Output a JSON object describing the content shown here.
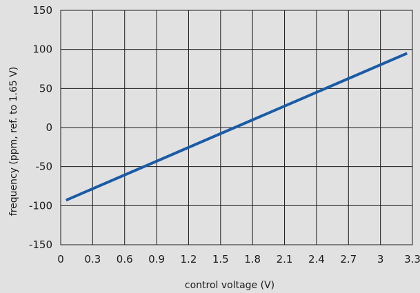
{
  "chart_data": {
    "type": "line",
    "title": "",
    "xlabel": "control voltage (V)",
    "ylabel": "frequency (ppm, ref. to 1.65 V)",
    "xlim": [
      0,
      3.3
    ],
    "ylim": [
      -150,
      150
    ],
    "xticks": [
      0,
      0.3,
      0.6,
      0.9,
      1.2,
      1.5,
      1.8,
      2.1,
      2.4,
      2.7,
      3,
      3.3
    ],
    "xtick_labels": [
      "0",
      "0.3",
      "0.6",
      "0.9",
      "1.2",
      "1.5",
      "1.8",
      "2.1",
      "2.4",
      "2.7",
      "3",
      "3.3"
    ],
    "yticks": [
      -150,
      -100,
      -50,
      0,
      50,
      100,
      150
    ],
    "ytick_labels": [
      "-150",
      "-100",
      "-50",
      "0",
      "50",
      "100",
      "150"
    ],
    "grid": true,
    "series": [
      {
        "color": "#1a5ba6",
        "x": [
          0.05,
          3.25
        ],
        "y": [
          -93,
          95
        ]
      }
    ]
  }
}
